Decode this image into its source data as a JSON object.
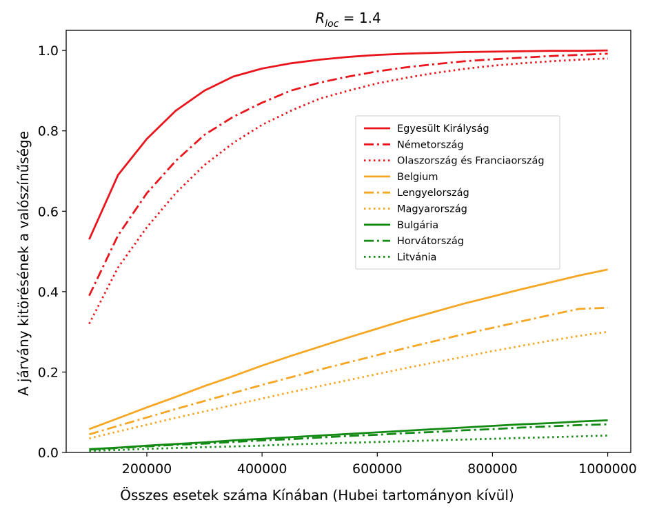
{
  "chart_data": {
    "type": "line",
    "title": "R",
    "title_subscript": "loc",
    "title_suffix": " = 1.4",
    "xlabel": "Összes esetek száma Kínában (Hubei tartományon kívül)",
    "ylabel": "A járvány kitörésének a valószínűsége",
    "xlim": [
      60000,
      1040000
    ],
    "ylim": [
      0,
      1.05
    ],
    "xticks": [
      200000,
      400000,
      600000,
      800000,
      1000000
    ],
    "xtick_labels": [
      "200000",
      "400000",
      "600000",
      "800000",
      "1000000"
    ],
    "yticks": [
      0.0,
      0.2,
      0.4,
      0.6,
      0.8,
      1.0
    ],
    "ytick_labels": [
      "0.0",
      "0.2",
      "0.4",
      "0.6",
      "0.8",
      "1.0"
    ],
    "grid": false,
    "legend_position": "center-right",
    "x": [
      100000,
      150000,
      200000,
      250000,
      300000,
      350000,
      400000,
      450000,
      500000,
      550000,
      600000,
      650000,
      700000,
      750000,
      800000,
      850000,
      900000,
      950000,
      1000000
    ],
    "series": [
      {
        "name": "Egyesült Királyság",
        "color": "#e8161c",
        "dash": "solid",
        "values": [
          0.53,
          0.69,
          0.78,
          0.85,
          0.9,
          0.935,
          0.955,
          0.968,
          0.977,
          0.984,
          0.989,
          0.992,
          0.994,
          0.996,
          0.997,
          0.998,
          0.999,
          0.999,
          1.0
        ]
      },
      {
        "name": "Németország",
        "color": "#e8161c",
        "dash": "dashdot",
        "values": [
          0.39,
          0.54,
          0.645,
          0.725,
          0.79,
          0.835,
          0.87,
          0.9,
          0.92,
          0.935,
          0.948,
          0.958,
          0.966,
          0.973,
          0.978,
          0.982,
          0.986,
          0.989,
          0.992
        ]
      },
      {
        "name": "Olaszország és Franciaország",
        "color": "#e8161c",
        "dash": "dotted",
        "values": [
          0.32,
          0.46,
          0.56,
          0.645,
          0.715,
          0.77,
          0.815,
          0.85,
          0.88,
          0.9,
          0.918,
          0.932,
          0.944,
          0.954,
          0.962,
          0.968,
          0.973,
          0.977,
          0.98
        ]
      },
      {
        "name": "Belgium",
        "color": "#f5a623",
        "dash": "solid",
        "values": [
          0.058,
          0.085,
          0.112,
          0.138,
          0.165,
          0.19,
          0.216,
          0.24,
          0.263,
          0.286,
          0.308,
          0.33,
          0.35,
          0.37,
          0.388,
          0.406,
          0.423,
          0.44,
          0.455
        ]
      },
      {
        "name": "Lengyelország",
        "color": "#f5a623",
        "dash": "dashdot",
        "values": [
          0.045,
          0.066,
          0.087,
          0.108,
          0.128,
          0.148,
          0.168,
          0.187,
          0.206,
          0.224,
          0.242,
          0.26,
          0.277,
          0.294,
          0.31,
          0.326,
          0.342,
          0.357,
          0.36
        ]
      },
      {
        "name": "Magyarország",
        "color": "#f5a623",
        "dash": "dotted",
        "values": [
          0.035,
          0.052,
          0.069,
          0.086,
          0.102,
          0.118,
          0.134,
          0.15,
          0.165,
          0.18,
          0.195,
          0.21,
          0.224,
          0.238,
          0.252,
          0.265,
          0.278,
          0.29,
          0.3
        ]
      },
      {
        "name": "Bulgária",
        "color": "#138a13",
        "dash": "solid",
        "values": [
          0.008,
          0.012,
          0.017,
          0.021,
          0.025,
          0.03,
          0.034,
          0.038,
          0.042,
          0.046,
          0.05,
          0.054,
          0.058,
          0.062,
          0.066,
          0.07,
          0.073,
          0.077,
          0.08
        ]
      },
      {
        "name": "Horvátország",
        "color": "#138a13",
        "dash": "dashdot",
        "values": [
          0.007,
          0.011,
          0.015,
          0.019,
          0.022,
          0.026,
          0.03,
          0.033,
          0.037,
          0.041,
          0.044,
          0.048,
          0.051,
          0.055,
          0.058,
          0.062,
          0.065,
          0.068,
          0.07
        ]
      },
      {
        "name": "Litvánia",
        "color": "#138a13",
        "dash": "dotted",
        "values": [
          0.004,
          0.006,
          0.009,
          0.011,
          0.013,
          0.015,
          0.017,
          0.02,
          0.022,
          0.024,
          0.026,
          0.028,
          0.03,
          0.032,
          0.034,
          0.036,
          0.038,
          0.04,
          0.042
        ]
      }
    ]
  }
}
